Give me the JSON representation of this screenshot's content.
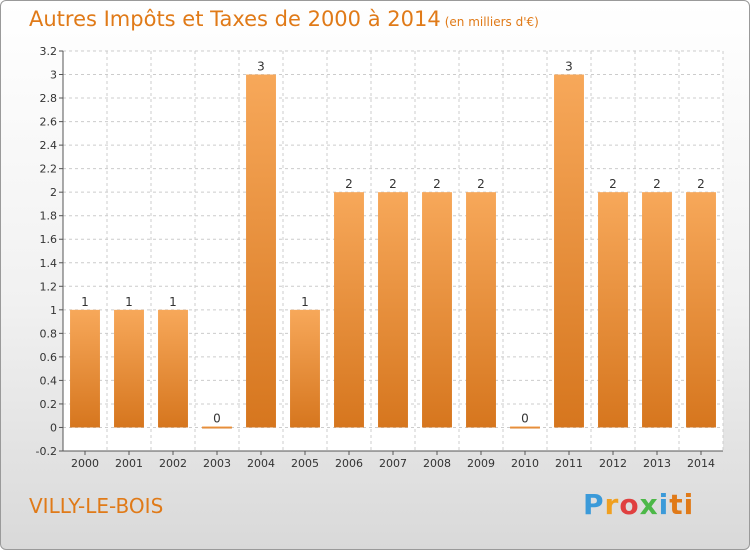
{
  "header": {
    "title": "Autres Impôts et Taxes de 2000 à 2014",
    "unit": "(en milliers d'€)"
  },
  "footer": {
    "town": "VILLY-LE-BOIS",
    "brand": [
      "P",
      "r",
      "o",
      "x",
      "i",
      "ti"
    ]
  },
  "colors": {
    "bar_light": "#f7a85a",
    "bar_dark": "#d6761e",
    "accent": "#e07a18"
  },
  "chart_data": {
    "type": "bar",
    "title": "Autres Impôts et Taxes de 2000 à 2014",
    "subtitle": "(en milliers d'€)",
    "xlabel": "",
    "ylabel": "",
    "categories": [
      "2000",
      "2001",
      "2002",
      "2003",
      "2004",
      "2005",
      "2006",
      "2007",
      "2008",
      "2009",
      "2010",
      "2011",
      "2012",
      "2013",
      "2014"
    ],
    "values": [
      1,
      1,
      1,
      0,
      3,
      1,
      2,
      2,
      2,
      2,
      0,
      3,
      2,
      2,
      2
    ],
    "data_labels": [
      "1",
      "1",
      "1",
      "0",
      "3",
      "1",
      "2",
      "2",
      "2",
      "2",
      "0",
      "3",
      "2",
      "2",
      "2"
    ],
    "ylim": [
      -0.2,
      3.2
    ],
    "yticks": [
      -0.2,
      0,
      0.2,
      0.4,
      0.6,
      0.8,
      1,
      1.2,
      1.4,
      1.6,
      1.8,
      2,
      2.2,
      2.4,
      2.6,
      2.8,
      3,
      3.2
    ],
    "ytick_labels": [
      "-0.2",
      "0",
      "0.2",
      "0.4",
      "0.6",
      "0.8",
      "1",
      "1.2",
      "1.4",
      "1.6",
      "1.8",
      "2",
      "2.2",
      "2.4",
      "2.6",
      "2.8",
      "3",
      "3.2"
    ],
    "grid": true,
    "legend": "none"
  }
}
